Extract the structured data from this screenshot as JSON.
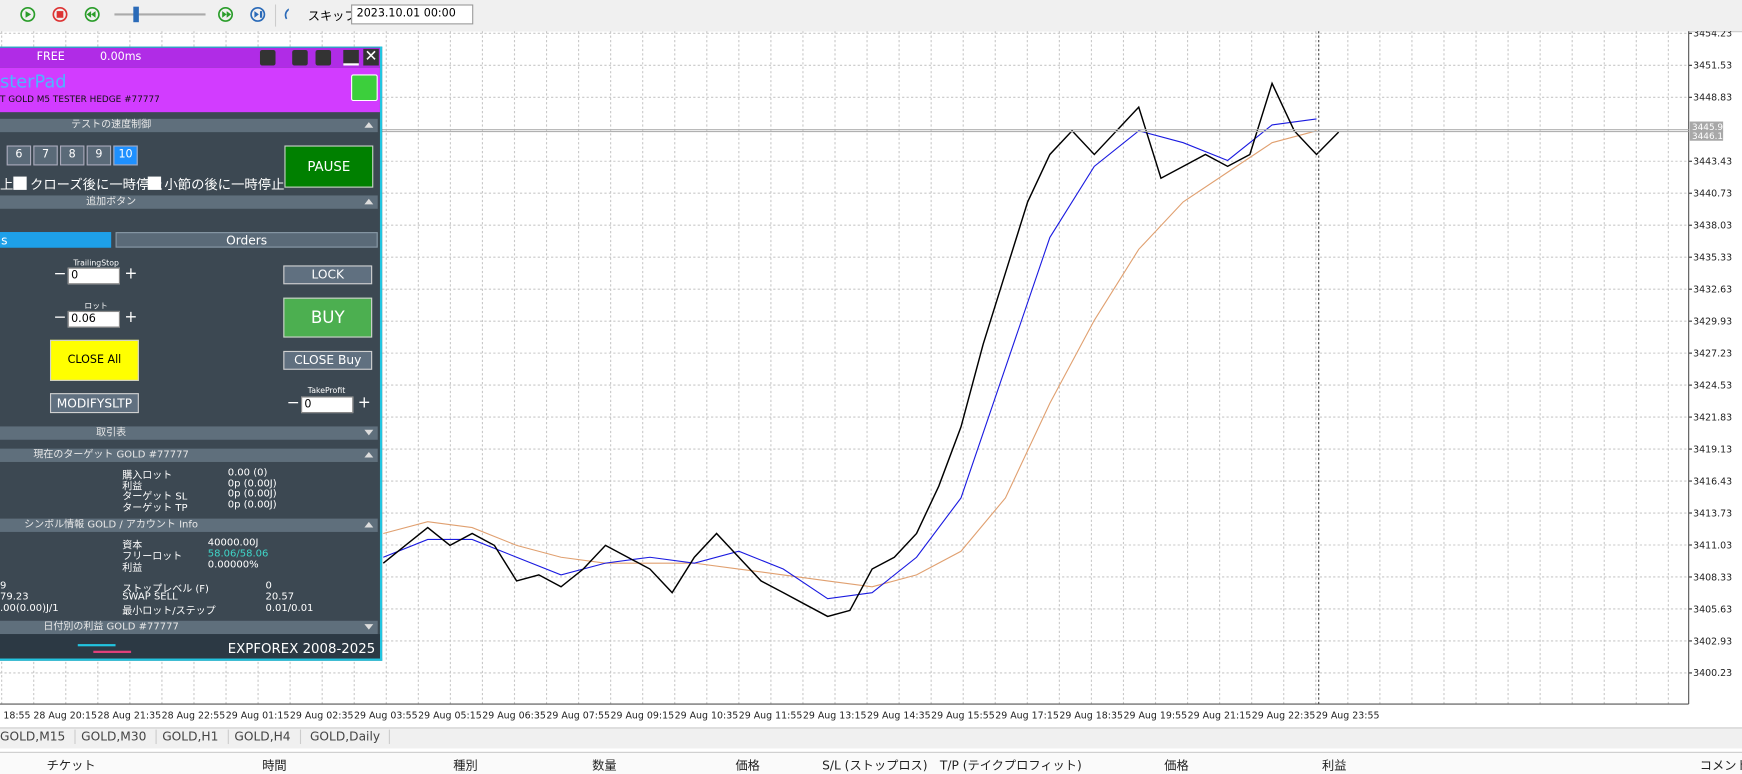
{
  "toolbar": {
    "skip_label": "スキップ",
    "date": "2023.10.01 00:00"
  },
  "panel": {
    "status": "FREE",
    "latency": "0.00ms",
    "title": "sterPad",
    "subtitle": "T GOLD M5 TESTER HEDGE  #77777",
    "sections": {
      "speed": "テストの速度制御",
      "extra": "追加ボタン",
      "trades": "取引表",
      "target": "現在のターゲット GOLD  #77777",
      "symbol": "シンボル情報 GOLD / アカウント Info",
      "daily": "日付別の利益 GOLD  #77777"
    },
    "speed_buttons": [
      "6",
      "7",
      "8",
      "9",
      "10"
    ],
    "pause": "PAUSE",
    "checkboxes": [
      "上",
      "クローズ後に一時停止",
      "小節の後に一時停止"
    ],
    "tabs": [
      "s",
      "Orders"
    ],
    "trailing_stop": {
      "label": "TrailingStop",
      "value": "0"
    },
    "lot": {
      "label": "ロット",
      "value": "0.06"
    },
    "take_profit": {
      "label": "TakeProfit",
      "value": "0"
    },
    "buttons": {
      "lock": "LOCK",
      "buy": "BUY",
      "close_all": "CLOSE All",
      "close_buy": "CLOSE Buy",
      "modify": "MODIFYSLTP"
    },
    "target_rows": [
      [
        "購入ロット",
        "0.00 (0)"
      ],
      [
        "利益",
        "0p (0.00J)"
      ],
      [
        "ターゲット SL",
        "0p (0.00J)"
      ],
      [
        "ターゲット TP",
        "0p (0.00J)"
      ]
    ],
    "account_rows": [
      [
        "資本",
        "40000.00J"
      ],
      [
        "フリーロット",
        "58.06/58.06"
      ],
      [
        "利益",
        "0.00000%"
      ]
    ],
    "symbol_rows": [
      [
        "9",
        "ストップレベル (F)",
        "0"
      ],
      [
        "79.23",
        "SWAP SELL",
        "20.57"
      ],
      [
        ".00(0.00)J/1",
        "最小ロット/ステップ",
        "0.01/0.01"
      ]
    ],
    "footer": "EXPFOREX 2008-2025"
  },
  "chart": {
    "ylim": [
      3397.6,
      3454.42
    ],
    "yticks": [
      3454.23,
      3451.53,
      3448.83,
      3443.43,
      3440.73,
      3438.03,
      3435.33,
      3432.63,
      3429.93,
      3427.23,
      3424.53,
      3421.83,
      3419.13,
      3416.43,
      3413.73,
      3411.03,
      3408.33,
      3405.63,
      3402.93,
      3400.23
    ],
    "current_prices": [
      3445.94,
      3446.1
    ],
    "time_labels": [
      "18:55",
      "28 Aug 20:15",
      "28 Aug 21:35",
      "28 Aug 22:55",
      "29 Aug 01:15",
      "29 Aug 02:35",
      "29 Aug 03:55",
      "29 Aug 05:15",
      "29 Aug 06:35",
      "29 Aug 07:55",
      "29 Aug 09:15",
      "29 Aug 10:35",
      "29 Aug 11:55",
      "29 Aug 13:15",
      "29 Aug 14:35",
      "29 Aug 15:55",
      "29 Aug 17:15",
      "29 Aug 18:35",
      "29 Aug 19:55",
      "29 Aug 21:15",
      "29 Aug 22:35",
      "29 Aug 23:55"
    ],
    "close": [
      3409.5,
      3411,
      3412.5,
      3411,
      3412,
      3411,
      3408,
      3408.5,
      3407.5,
      3409,
      3411,
      3410,
      3409,
      3407,
      3410,
      3412,
      3410,
      3408,
      3407,
      3406,
      3405,
      3405.5,
      3409,
      3410,
      3412,
      3416,
      3421,
      3428,
      3434,
      3440,
      3444,
      3446,
      3444,
      3446,
      3448,
      3442,
      3443,
      3444,
      3443,
      3444,
      3450,
      3446,
      3444,
      3445.9
    ],
    "ma_fast": [
      3410,
      3411.5,
      3411.5,
      3410,
      3408.5,
      3409.5,
      3410,
      3409.5,
      3410.5,
      3409,
      3406.5,
      3407,
      3410,
      3415,
      3426,
      3437,
      3443,
      3446,
      3445,
      3443.5,
      3446.5,
      3447
    ],
    "ma_slow": [
      3412,
      3413,
      3412.5,
      3411,
      3410,
      3409.5,
      3409.5,
      3409.5,
      3409,
      3408.5,
      3408,
      3407.5,
      3408.5,
      3410.5,
      3415,
      3423,
      3430,
      3436,
      3440,
      3442.5,
      3445,
      3446
    ]
  },
  "tabs": [
    "GOLD,M15",
    "GOLD,M30",
    "GOLD,H1",
    "GOLD,H4",
    "GOLD,Daily"
  ],
  "columns": [
    "チケット",
    "時間",
    "種別",
    "数量",
    "価格",
    "S/L (ストップロス)",
    "T/P (テイクプロフィット)",
    "価格",
    "利益",
    "コメント"
  ]
}
